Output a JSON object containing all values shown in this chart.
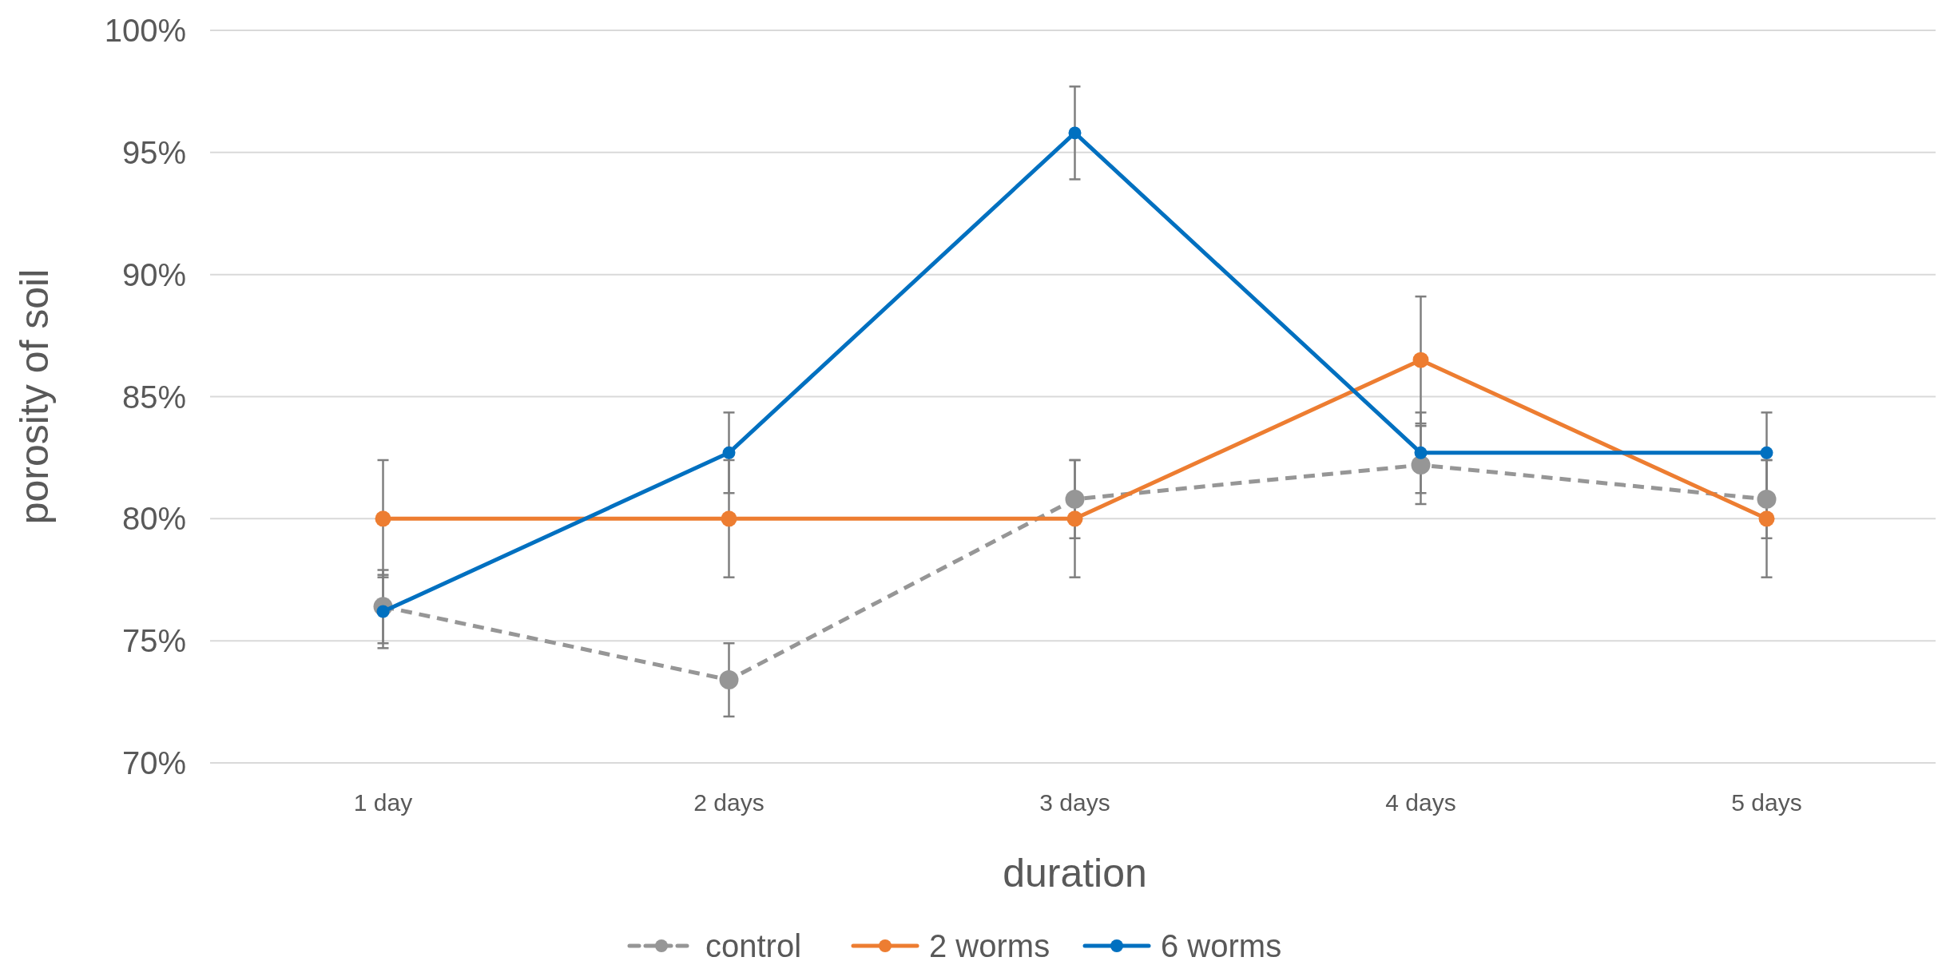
{
  "chart_data": {
    "type": "line",
    "xlabel": "duration",
    "ylabel": "porosity of soil",
    "categories": [
      "1 day",
      "2 days",
      "3 days",
      "4 days",
      "5 days"
    ],
    "series": [
      {
        "name": "control",
        "color": "#969696",
        "line_style": "dashed",
        "values": [
          76.4,
          73.4,
          80.8,
          82.2,
          80.8
        ],
        "errors": [
          1.5,
          1.5,
          1.6,
          1.6,
          1.6
        ]
      },
      {
        "name": "2 worms",
        "color": "#ed7d31",
        "values": [
          80,
          80,
          80,
          86.5,
          80
        ],
        "errors": [
          2.4,
          2.4,
          2.4,
          2.6,
          2.4
        ]
      },
      {
        "name": "6 worms",
        "color": "#0070c0",
        "values": [
          76.2,
          82.7,
          95.8,
          82.7,
          82.7
        ],
        "errors": [
          1.5,
          1.65,
          1.9,
          1.65,
          1.65
        ]
      }
    ],
    "ylim": [
      70,
      100
    ],
    "yticks": [
      {
        "value": 70,
        "label": "70%"
      },
      {
        "value": 75,
        "label": "75%"
      },
      {
        "value": 80,
        "label": "80%"
      },
      {
        "value": 85,
        "label": "85%"
      },
      {
        "value": 90,
        "label": "90%"
      },
      {
        "value": 95,
        "label": "95%"
      },
      {
        "value": 100,
        "label": "100%"
      }
    ],
    "grid": "y",
    "legend": "bottom",
    "marker": "circle",
    "line_style": "solid"
  }
}
